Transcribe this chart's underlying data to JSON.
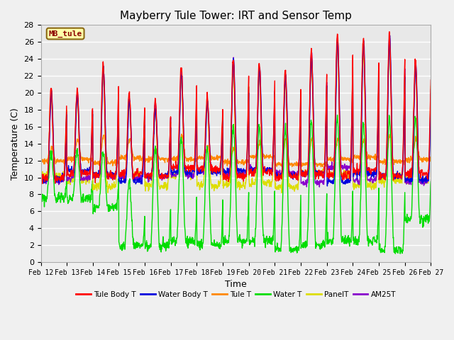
{
  "title": "Mayberry Tule Tower: IRT and Sensor Temp",
  "xlabel": "Time",
  "ylabel": "Temperature (C)",
  "ylim": [
    0,
    28
  ],
  "yticks": [
    0,
    2,
    4,
    6,
    8,
    10,
    12,
    14,
    16,
    18,
    20,
    22,
    24,
    26,
    28
  ],
  "xtick_labels": [
    "Feb 12",
    "Feb 13",
    "Feb 14",
    "Feb 15",
    "Feb 16",
    "Feb 17",
    "Feb 18",
    "Feb 19",
    "Feb 20",
    "Feb 21",
    "Feb 22",
    "Feb 23",
    "Feb 24",
    "Feb 25",
    "Feb 26",
    "Feb 27"
  ],
  "colors": {
    "Tule Body T": "#ff0000",
    "Water Body T": "#0000dd",
    "Tule T": "#ff8800",
    "Water T": "#00dd00",
    "PanelT": "#dddd00",
    "AM25T": "#8800cc"
  },
  "legend_label": "MB_tule",
  "background_color": "#e8e8e8",
  "grid_color": "#ffffff",
  "line_width": 1.0,
  "figsize": [
    6.4,
    4.8
  ],
  "dpi": 100
}
